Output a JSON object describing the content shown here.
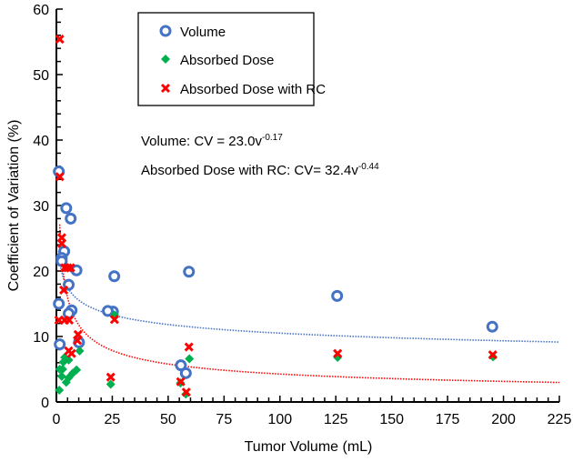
{
  "chart_data": {
    "type": "scatter",
    "xlabel": "Tumor Volume (mL)",
    "ylabel": "Coefficient of Variation (%)",
    "xlim": [
      0,
      225
    ],
    "ylim": [
      0,
      60
    ],
    "xticks": [
      0,
      25,
      50,
      75,
      100,
      125,
      150,
      175,
      200,
      225
    ],
    "yticks": [
      0,
      10,
      20,
      30,
      40,
      50,
      60
    ],
    "grid": false,
    "legend_position": "top-center",
    "colors": {
      "volume": "#4472C4",
      "dose": "#00B050",
      "dose_rc": "#FF0000"
    },
    "series": [
      {
        "name": "Volume",
        "marker": "circle",
        "points": [
          [
            1.1,
            35.2
          ],
          [
            4.4,
            29.6
          ],
          [
            6.4,
            28.0
          ],
          [
            3.5,
            23.0
          ],
          [
            2.4,
            22.0
          ],
          [
            2.4,
            21.5
          ],
          [
            9.0,
            20.1
          ],
          [
            25.9,
            19.2
          ],
          [
            59.3,
            19.9
          ],
          [
            5.5,
            17.9
          ],
          [
            1.1,
            15.0
          ],
          [
            6.8,
            14.0
          ],
          [
            5.5,
            13.5
          ],
          [
            25.3,
            13.8
          ],
          [
            23.0,
            13.9
          ],
          [
            1.5,
            8.8
          ],
          [
            10.1,
            9.1
          ],
          [
            125.6,
            16.2
          ],
          [
            195.0,
            11.5
          ],
          [
            55.7,
            5.6
          ],
          [
            57.9,
            4.4
          ]
        ]
      },
      {
        "name": "Absorbed Dose",
        "marker": "diamond",
        "points": [
          [
            1.3,
            1.8
          ],
          [
            2.4,
            3.9
          ],
          [
            1.5,
            5.0
          ],
          [
            3.1,
            6.1
          ],
          [
            3.7,
            6.8
          ],
          [
            5.5,
            6.4
          ],
          [
            4.4,
            3.0
          ],
          [
            5.5,
            3.7
          ],
          [
            7.3,
            4.4
          ],
          [
            9.0,
            4.9
          ],
          [
            10.4,
            7.8
          ],
          [
            2.8,
            5.0
          ],
          [
            26.0,
            13.3
          ],
          [
            24.3,
            2.7
          ],
          [
            59.5,
            6.6
          ],
          [
            55.5,
            2.9
          ],
          [
            57.9,
            1.2
          ],
          [
            125.8,
            6.8
          ],
          [
            195.3,
            6.9
          ]
        ]
      },
      {
        "name": "Absorbed Dose with RC",
        "marker": "x",
        "points": [
          [
            1.5,
            55.4
          ],
          [
            1.5,
            34.4
          ],
          [
            2.4,
            25.1
          ],
          [
            2.4,
            24.2
          ],
          [
            3.7,
            20.5
          ],
          [
            5.1,
            20.5
          ],
          [
            6.4,
            20.5
          ],
          [
            3.3,
            17.1
          ],
          [
            1.1,
            12.5
          ],
          [
            3.7,
            12.5
          ],
          [
            5.7,
            12.5
          ],
          [
            5.5,
            7.8
          ],
          [
            6.8,
            7.4
          ],
          [
            9.4,
            9.4
          ],
          [
            9.7,
            10.3
          ],
          [
            26.0,
            12.6
          ],
          [
            24.3,
            3.8
          ],
          [
            59.3,
            8.4
          ],
          [
            55.6,
            3.1
          ],
          [
            58.1,
            1.5
          ],
          [
            125.8,
            7.4
          ],
          [
            195.2,
            7.2
          ]
        ]
      }
    ],
    "trendlines": [
      {
        "series": "Volume",
        "a": 23.0,
        "b": -0.17,
        "x_range": [
          1,
          225
        ],
        "color": "#4472C4"
      },
      {
        "series": "Absorbed Dose with RC",
        "a": 32.4,
        "b": -0.44,
        "x_range": [
          1.5,
          225
        ],
        "color": "#FF0000"
      }
    ],
    "annotations": {
      "volume_eq": {
        "main": "Volume: CV = 23.0v",
        "exp": "-0.17"
      },
      "dose_eq": {
        "main": "Absorbed Dose with RC: CV= 32.4v",
        "exp": "-0.44"
      }
    }
  }
}
